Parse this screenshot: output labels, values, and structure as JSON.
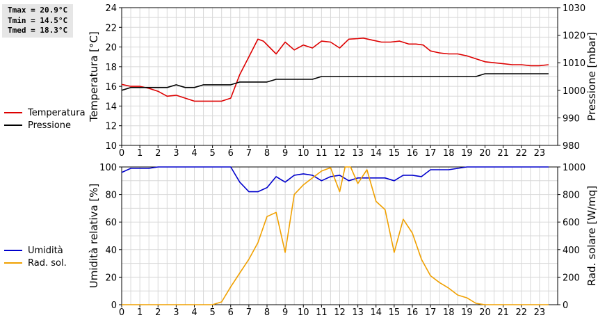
{
  "stats": {
    "tmax": "Tmax = 20.9°C",
    "tmin": "Tmin = 14.5°C",
    "tmed": "Tmed = 18.3°C"
  },
  "chart_data": [
    {
      "type": "line",
      "xlim": [
        0,
        24
      ],
      "x_ticks": [
        "0",
        "1",
        "2",
        "3",
        "4",
        "5",
        "6",
        "7",
        "8",
        "9",
        "10",
        "11",
        "12",
        "13",
        "14",
        "15",
        "16",
        "17",
        "18",
        "19",
        "20",
        "21",
        "22",
        "23"
      ],
      "ylabel": "Temperatura [°C]",
      "ylim": [
        10,
        24
      ],
      "y_ticks": [
        "10",
        "12",
        "14",
        "16",
        "18",
        "20",
        "22",
        "24"
      ],
      "y2label": "Pressione [mbar]",
      "y2lim": [
        980,
        1030
      ],
      "y2_ticks": [
        "980",
        "990",
        "1000",
        "1010",
        "1020",
        "1030"
      ],
      "grid": true,
      "legend_position": "left",
      "series": [
        {
          "name": "Temperatura",
          "color": "#dd0000",
          "axis": "left",
          "x": [
            0,
            0.5,
            1,
            1.5,
            2,
            2.5,
            3,
            3.5,
            4,
            4.5,
            5,
            5.5,
            6,
            6.5,
            7,
            7.5,
            7.8,
            8.5,
            9,
            9.5,
            10,
            10.5,
            11,
            11.5,
            12,
            12.5,
            13,
            13.3,
            13.8,
            14.3,
            14.8,
            15.3,
            15.8,
            16.2,
            16.6,
            17,
            17.5,
            18,
            18.5,
            19,
            19.5,
            20,
            20.5,
            21,
            21.5,
            22,
            22.5,
            23,
            23.5
          ],
          "values": [
            16.2,
            16,
            16,
            15.8,
            15.5,
            15,
            15.1,
            14.8,
            14.5,
            14.5,
            14.5,
            14.5,
            14.8,
            17.2,
            19,
            20.8,
            20.6,
            19.3,
            20.5,
            19.7,
            20.2,
            19.9,
            20.6,
            20.5,
            19.9,
            20.8,
            20.85,
            20.9,
            20.7,
            20.5,
            20.5,
            20.6,
            20.3,
            20.3,
            20.2,
            19.6,
            19.4,
            19.3,
            19.3,
            19.1,
            18.8,
            18.5,
            18.4,
            18.3,
            18.2,
            18.2,
            18.1,
            18.1,
            18.2
          ]
        },
        {
          "name": "Pressione",
          "color": "#000000",
          "axis": "right",
          "x": [
            0,
            0.5,
            1,
            1.5,
            2,
            2.5,
            3,
            3.5,
            4,
            4.5,
            5,
            5.5,
            6,
            6.5,
            7,
            7.5,
            8,
            8.5,
            9,
            9.5,
            10,
            10.5,
            11,
            11.5,
            12,
            12.5,
            13,
            13.5,
            14,
            14.5,
            15,
            15.5,
            16,
            16.5,
            17,
            17.5,
            18,
            18.5,
            19,
            19.5,
            20,
            20.5,
            21,
            21.5,
            22,
            22.5,
            23,
            23.5
          ],
          "values": [
            1000,
            1001,
            1001,
            1001,
            1001,
            1001,
            1002,
            1001,
            1001,
            1002,
            1002,
            1002,
            1002,
            1003,
            1003,
            1003,
            1003,
            1004,
            1004,
            1004,
            1004,
            1004,
            1005,
            1005,
            1005,
            1005,
            1005,
            1005,
            1005,
            1005,
            1005,
            1005,
            1005,
            1005,
            1005,
            1005,
            1005,
            1005,
            1005,
            1005,
            1006,
            1006,
            1006,
            1006,
            1006,
            1006,
            1006,
            1006
          ]
        }
      ]
    },
    {
      "type": "line",
      "xlim": [
        0,
        24
      ],
      "x_ticks": [
        "0",
        "1",
        "2",
        "3",
        "4",
        "5",
        "6",
        "7",
        "8",
        "9",
        "10",
        "11",
        "12",
        "13",
        "14",
        "15",
        "16",
        "17",
        "18",
        "19",
        "20",
        "21",
        "22",
        "23"
      ],
      "ylabel": "Umidità relativa [%]",
      "ylim": [
        0,
        100
      ],
      "y_ticks": [
        "0",
        "20",
        "40",
        "60",
        "80",
        "100"
      ],
      "y2label": "Rad. solare [W/mq]",
      "y2lim": [
        0,
        1000
      ],
      "y2_ticks": [
        "0",
        "200",
        "400",
        "600",
        "800",
        "1000"
      ],
      "grid": true,
      "legend_position": "left",
      "series": [
        {
          "name": "Umidità",
          "color": "#0000cc",
          "axis": "left",
          "x": [
            0,
            0.5,
            1,
            1.5,
            2,
            3,
            4,
            5,
            6,
            6.5,
            7,
            7.5,
            8,
            8.5,
            9,
            9.5,
            10,
            10.5,
            11,
            11.5,
            12,
            12.5,
            13,
            13.5,
            14,
            14.5,
            15,
            15.5,
            16,
            16.5,
            17,
            17.5,
            18,
            18.5,
            19,
            20,
            21,
            22,
            23,
            23.5
          ],
          "values": [
            96,
            99,
            99,
            99,
            100,
            100,
            100,
            100,
            100,
            89,
            82,
            82,
            85,
            93,
            89,
            94,
            95,
            94,
            90,
            93,
            94,
            90,
            92,
            92,
            92,
            92,
            90,
            94,
            94,
            93,
            98,
            98,
            98,
            99,
            100,
            100,
            100,
            100,
            100,
            100
          ],
          "legend": "Umidità"
        },
        {
          "name": "Rad. sol.",
          "color": "#f0a000",
          "axis": "right",
          "x": [
            0,
            1,
            2,
            3,
            4,
            5,
            5.5,
            6,
            6.5,
            7,
            7.5,
            8,
            8.5,
            9,
            9.5,
            10,
            10.5,
            11,
            11.5,
            12,
            12.3,
            12.6,
            13,
            13.5,
            14,
            14.5,
            15,
            15.5,
            16,
            16.5,
            17,
            17.5,
            18,
            18.5,
            19,
            19.5,
            20,
            20.5,
            21,
            22,
            23,
            23.5
          ],
          "values": [
            0,
            0,
            0,
            0,
            0,
            0,
            20,
            130,
            230,
            330,
            450,
            640,
            670,
            380,
            800,
            870,
            920,
            970,
            995,
            820,
            1000,
            1000,
            880,
            980,
            750,
            690,
            380,
            620,
            520,
            330,
            210,
            160,
            120,
            70,
            50,
            10,
            0,
            0,
            0,
            0,
            0,
            0
          ]
        }
      ]
    }
  ]
}
